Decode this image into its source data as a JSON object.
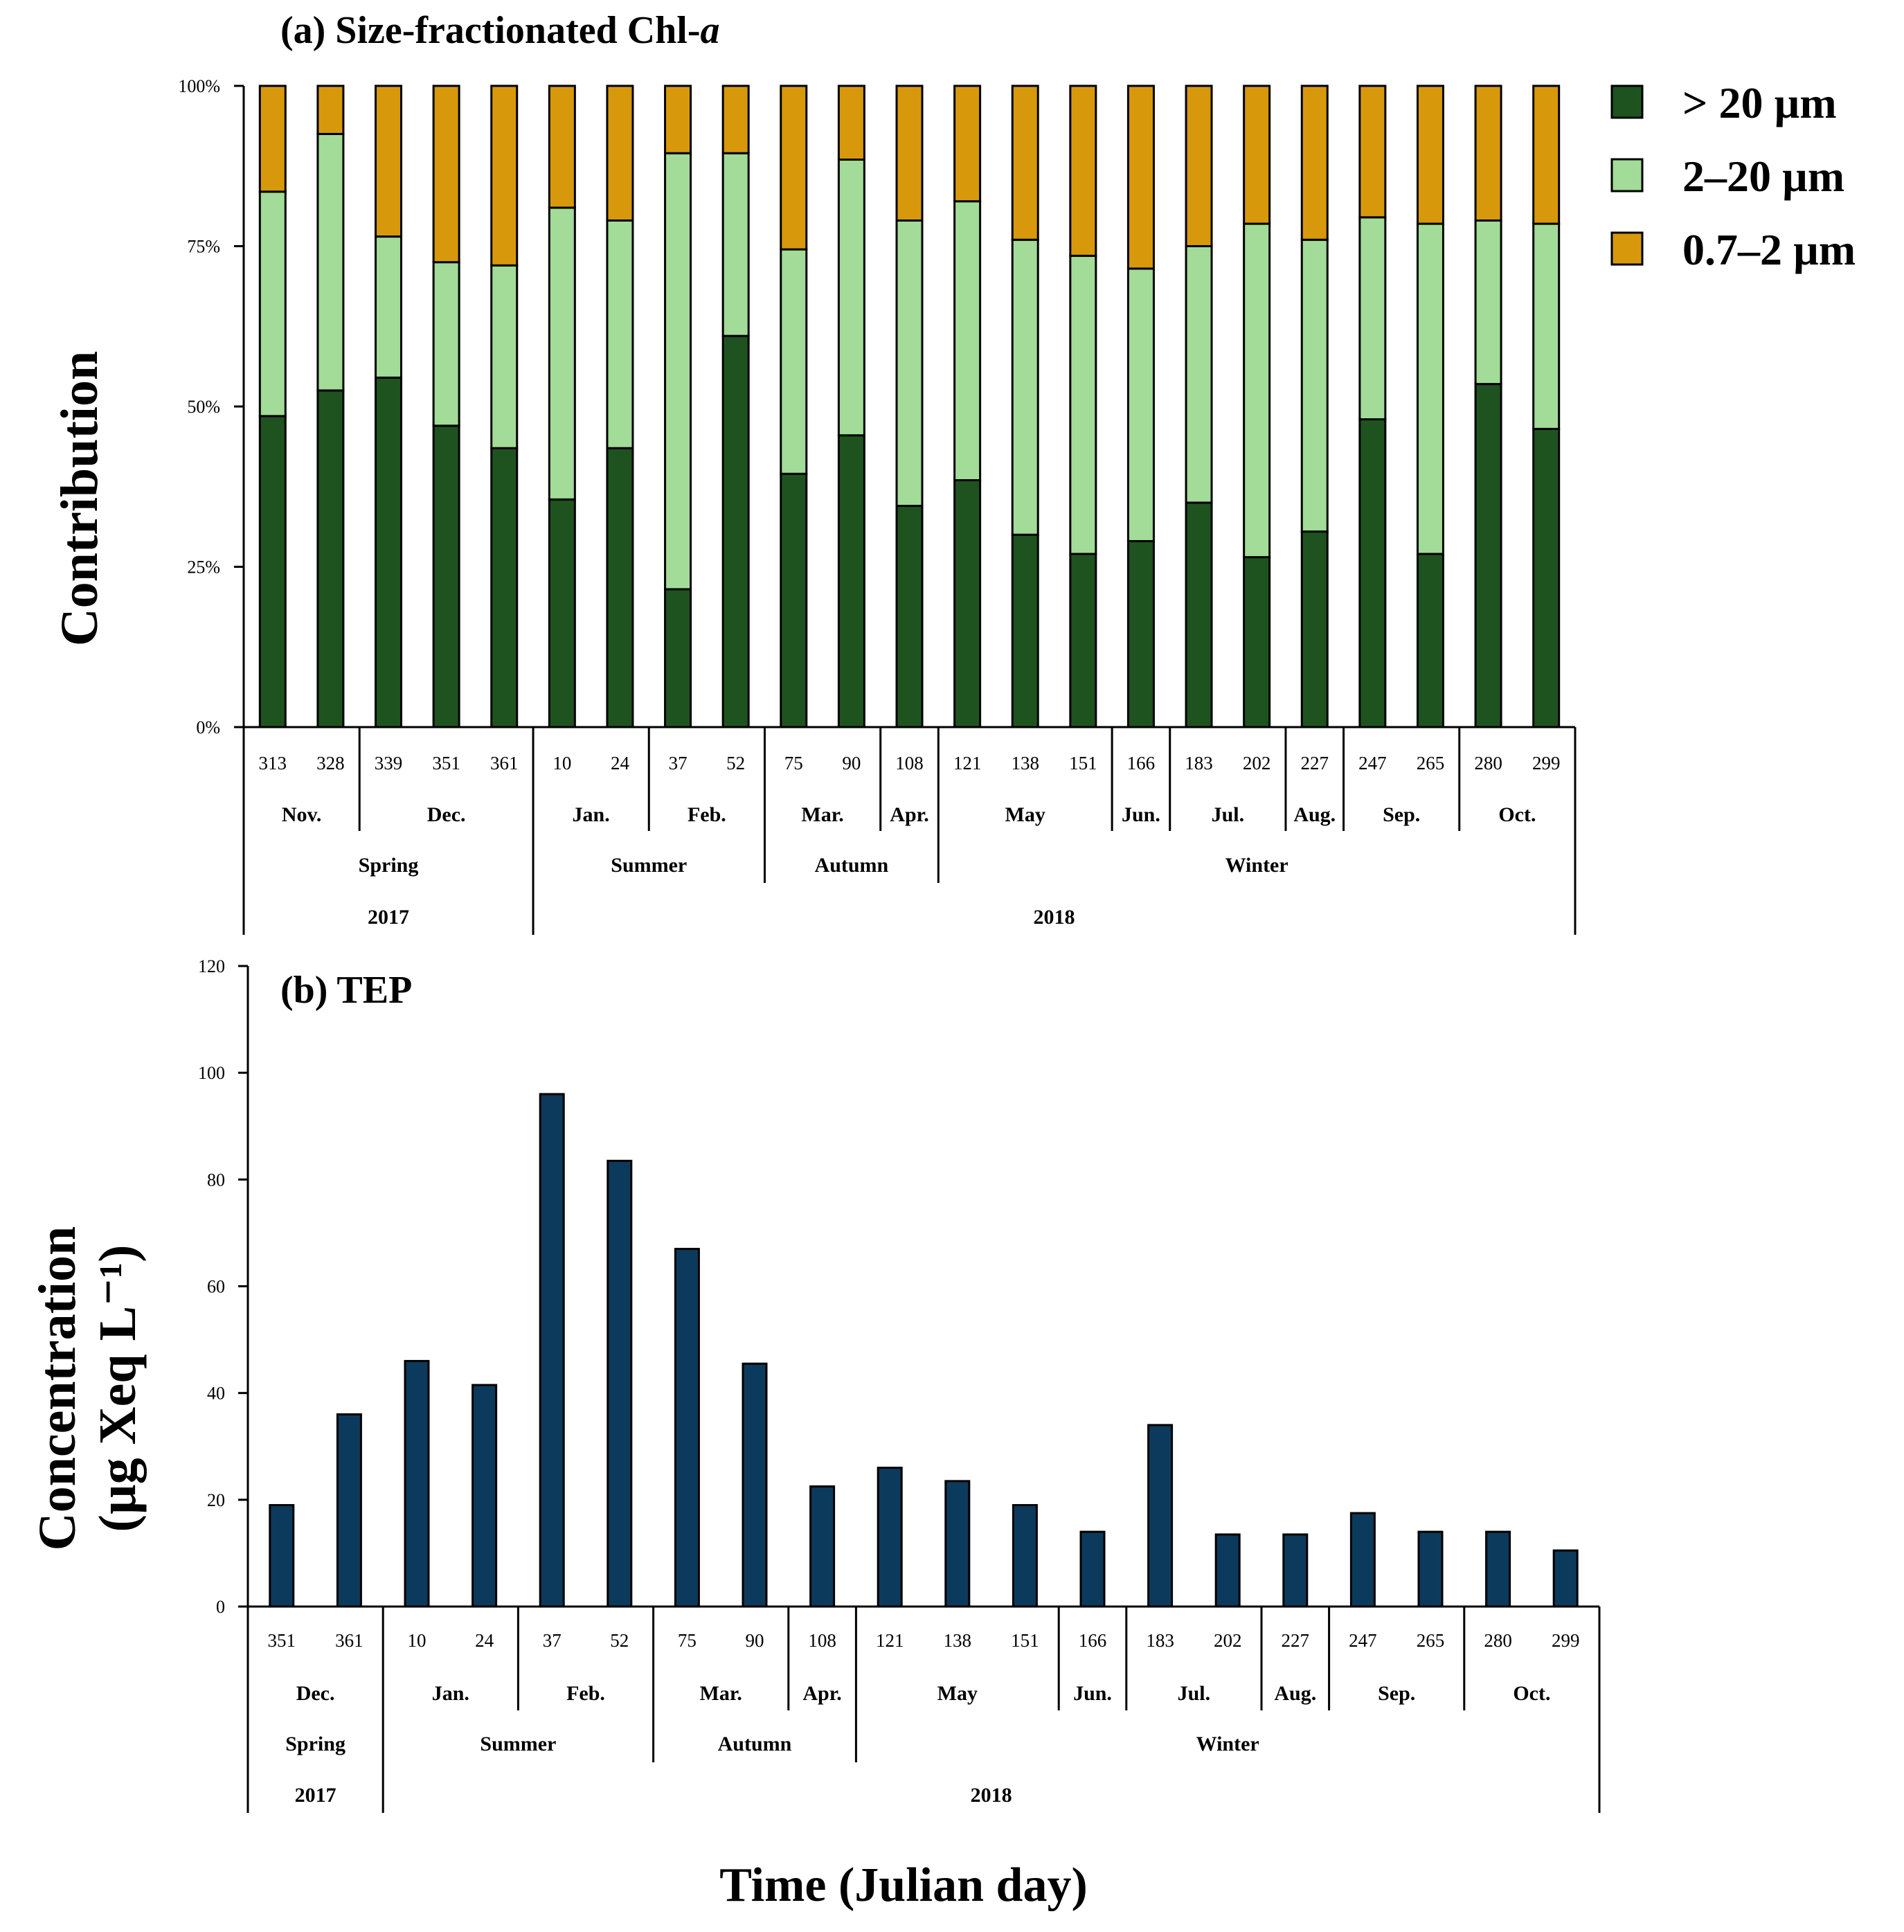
{
  "colors": {
    "large": "#1e5320",
    "medium": "#a2dc98",
    "small": "#d7990b",
    "tep_bar": "#0c3a5c",
    "axis": "#000000"
  },
  "axis_title_x": "Time (Julian day)",
  "chart_data": [
    {
      "type": "bar",
      "stacked": true,
      "title_prefix": "(a) Size-fractionated Chl-",
      "title_italic": "a",
      "ylabel": "Contribution",
      "ylim": [
        0,
        100
      ],
      "ytick_labels": [
        "0%",
        "25%",
        "50%",
        "75%",
        "100%"
      ],
      "categories": [
        "313",
        "328",
        "339",
        "351",
        "361",
        "10",
        "24",
        "37",
        "52",
        "75",
        "90",
        "108",
        "121",
        "138",
        "151",
        "166",
        "183",
        "202",
        "227",
        "247",
        "265",
        "280",
        "299"
      ],
      "months": [
        {
          "label": "Nov.",
          "span": 2
        },
        {
          "label": "Dec.",
          "span": 3
        },
        {
          "label": "Jan.",
          "span": 2
        },
        {
          "label": "Feb.",
          "span": 2
        },
        {
          "label": "Mar.",
          "span": 2
        },
        {
          "label": "Apr.",
          "span": 1
        },
        {
          "label": "May",
          "span": 3
        },
        {
          "label": "Jun.",
          "span": 1
        },
        {
          "label": "Jul.",
          "span": 2
        },
        {
          "label": "Aug.",
          "span": 1
        },
        {
          "label": "Sep.",
          "span": 2
        },
        {
          "label": "Oct.",
          "span": 2
        }
      ],
      "seasons": [
        {
          "label": "Spring",
          "span": 5
        },
        {
          "label": "Summer",
          "span": 4
        },
        {
          "label": "Autumn",
          "span": 3
        },
        {
          "label": "Winter",
          "span": 11
        }
      ],
      "years": [
        {
          "label": "2017",
          "span": 5
        },
        {
          "label": "2018",
          "span": 18
        }
      ],
      "series": [
        {
          "name": "> 20 µm",
          "key": "large",
          "values": [
            48.5,
            52.5,
            54.5,
            47,
            43.5,
            35.5,
            43.5,
            21.5,
            61,
            39.5,
            45.5,
            34.5,
            38.5,
            30,
            27,
            29,
            35,
            26.5,
            30.5,
            48,
            27,
            53.5,
            46.5
          ]
        },
        {
          "name": "2–20 µm",
          "key": "medium",
          "values": [
            35,
            40,
            22,
            25.5,
            28.5,
            45.5,
            35.5,
            68,
            28.5,
            35,
            43,
            44.5,
            43.5,
            46,
            46.5,
            42.5,
            40,
            52,
            45.5,
            31.5,
            51.5,
            25.5,
            32
          ]
        },
        {
          "name": "0.7–2 µm",
          "key": "small",
          "values": [
            16.5,
            7.5,
            23.5,
            27.5,
            28,
            19,
            21,
            10.5,
            10.5,
            25.5,
            11.5,
            21,
            18,
            24,
            26.5,
            28.5,
            25,
            21.5,
            24,
            20.5,
            21.5,
            21,
            21.5
          ]
        }
      ]
    },
    {
      "type": "bar",
      "title": "(b) TEP",
      "ylabel_line1": "Concentration",
      "ylabel_line2": "(µg Xeq L⁻¹)",
      "ylim": [
        0,
        120
      ],
      "yticks": [
        0,
        20,
        40,
        60,
        80,
        100,
        120
      ],
      "categories": [
        "351",
        "361",
        "10",
        "24",
        "37",
        "52",
        "75",
        "90",
        "108",
        "121",
        "138",
        "151",
        "166",
        "183",
        "202",
        "227",
        "247",
        "265",
        "280",
        "299"
      ],
      "values": [
        19,
        36,
        46,
        41.5,
        96,
        83.5,
        67,
        45.5,
        22.5,
        26,
        23.5,
        19,
        14,
        34,
        13.5,
        13.5,
        17.5,
        14,
        14,
        10.5
      ],
      "months": [
        {
          "label": "Dec.",
          "span": 2
        },
        {
          "label": "Jan.",
          "span": 2
        },
        {
          "label": "Feb.",
          "span": 2
        },
        {
          "label": "Mar.",
          "span": 2
        },
        {
          "label": "Apr.",
          "span": 1
        },
        {
          "label": "May",
          "span": 3
        },
        {
          "label": "Jun.",
          "span": 1
        },
        {
          "label": "Jul.",
          "span": 2
        },
        {
          "label": "Aug.",
          "span": 1
        },
        {
          "label": "Sep.",
          "span": 2
        },
        {
          "label": "Oct.",
          "span": 2
        }
      ],
      "seasons": [
        {
          "label": "Spring",
          "span": 2
        },
        {
          "label": "Summer",
          "span": 4
        },
        {
          "label": "Autumn",
          "span": 3
        },
        {
          "label": "Winter",
          "span": 11
        }
      ],
      "years": [
        {
          "label": "2017",
          "span": 2
        },
        {
          "label": "2018",
          "span": 18
        }
      ]
    }
  ]
}
